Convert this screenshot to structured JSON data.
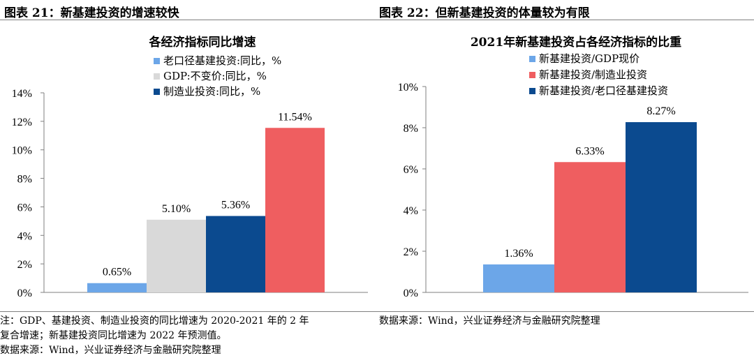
{
  "left_figure": {
    "label": "图表 21：新基建投资的增速较快"
  },
  "right_figure": {
    "label": "图表 22：但新基建投资的体量较为有限"
  },
  "chart_data": [
    {
      "type": "bar",
      "title": "各经济指标同比增速",
      "xlabel": "",
      "ylabel": "",
      "ylim": [
        0,
        14
      ],
      "yticks": [
        "0%",
        "2%",
        "4%",
        "6%",
        "8%",
        "10%",
        "12%",
        "14%"
      ],
      "ytick_values": [
        0,
        2,
        4,
        6,
        8,
        10,
        12,
        14
      ],
      "legend_position": "top-left",
      "series": [
        {
          "name": "老口径基建投资:同比，%",
          "color": "#6ca6e8",
          "value": 0.65,
          "label": "0.65%"
        },
        {
          "name": "GDP:不变价:同比，%",
          "color": "#d9d9d9",
          "value": 5.1,
          "label": "5.10%"
        },
        {
          "name": "制造业投资:同比，%",
          "color": "#0b4a8f",
          "value": 5.36,
          "label": "5.36%"
        },
        {
          "name": "",
          "color": "#ef5e60",
          "value": 11.54,
          "label": "11.54%"
        }
      ]
    },
    {
      "type": "bar",
      "title": "2021年新基建投资占各经济指标的比重",
      "xlabel": "",
      "ylabel": "",
      "ylim": [
        0,
        10
      ],
      "yticks": [
        "0%",
        "2%",
        "4%",
        "6%",
        "8%",
        "10%"
      ],
      "ytick_values": [
        0,
        2,
        4,
        6,
        8,
        10
      ],
      "legend_position": "top-right",
      "series": [
        {
          "name": "新基建投资/GDP现价",
          "color": "#6ca6e8",
          "value": 1.36,
          "label": "1.36%"
        },
        {
          "name": "新基建投资/制造业投资",
          "color": "#ef5e60",
          "value": 6.33,
          "label": "6.33%"
        },
        {
          "name": "新基建投资/老口径基建投资",
          "color": "#0b4a8f",
          "value": 8.27,
          "label": "8.27%"
        }
      ]
    }
  ],
  "notes_left": {
    "line1": "注：GDP、基建投资、制造业投资的同比增速为 2020-2021 年的 2 年",
    "line2": "复合增速；新基建投资同比增速为 2022 年预测值。",
    "line3": "数据来源：Wind，兴业证券经济与金融研究院整理"
  },
  "notes_right": {
    "line1": "数据来源：Wind，兴业证券经济与金融研究院整理"
  }
}
